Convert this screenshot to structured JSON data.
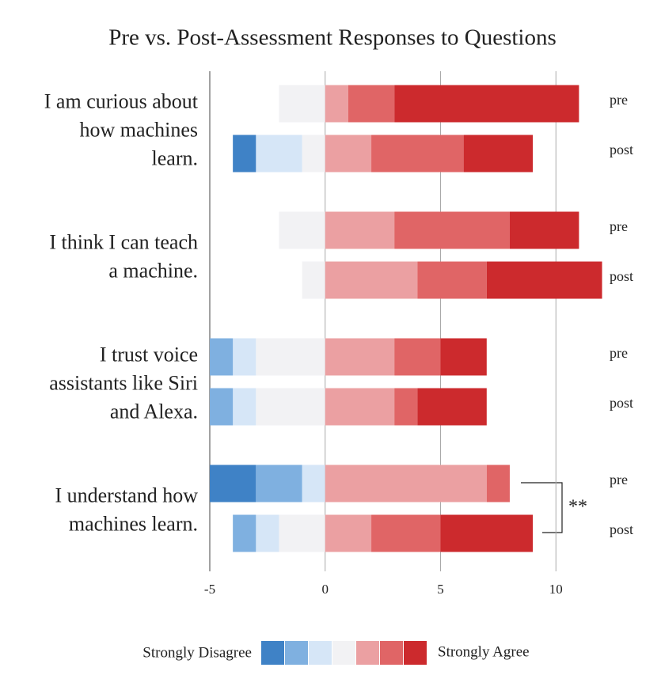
{
  "chart_data": {
    "type": "diverging-bar",
    "title": "Pre vs. Post-Assessment Responses to Questions",
    "questions": [
      [
        "I am curious about",
        "how machines",
        "learn."
      ],
      [
        "I think I can teach",
        "a machine."
      ],
      [
        "I trust voice",
        "assistants like Siri",
        "and Alexa."
      ],
      [
        "I understand how",
        "machines learn."
      ]
    ],
    "categories": [
      "pre",
      "post",
      "pre",
      "post",
      "pre",
      "post",
      "pre",
      "post"
    ],
    "series": [
      {
        "color": "#3f82c6",
        "values": [
          0,
          -1,
          0,
          0,
          0,
          0,
          -2,
          0
        ]
      },
      {
        "color": "#7fb0e0",
        "values": [
          0,
          0,
          0,
          0,
          -1,
          -1,
          -2,
          -1
        ]
      },
      {
        "color": "#d6e6f7",
        "values": [
          0,
          -2,
          0,
          0,
          -1,
          -1,
          -1,
          -1
        ]
      },
      {
        "color": "#f2f2f4",
        "values": [
          -2,
          -1,
          -2,
          -1,
          -3,
          -3,
          0,
          -2
        ]
      },
      {
        "color": "#eba0a2",
        "values": [
          1,
          2,
          3,
          4,
          3,
          3,
          7,
          2
        ]
      },
      {
        "color": "#e06566",
        "values": [
          2,
          4,
          5,
          3,
          2,
          1,
          1,
          3
        ]
      },
      {
        "color": "#cc2a2d",
        "values": [
          8,
          3,
          3,
          5,
          2,
          3,
          0,
          4
        ]
      }
    ],
    "xlim": [
      -5,
      12
    ],
    "xticks": [
      -5,
      0,
      5,
      10
    ],
    "grid": true,
    "legend_left": "Strongly  Disagree",
    "legend_right": "Strongly  Agree",
    "annotation": "**"
  }
}
